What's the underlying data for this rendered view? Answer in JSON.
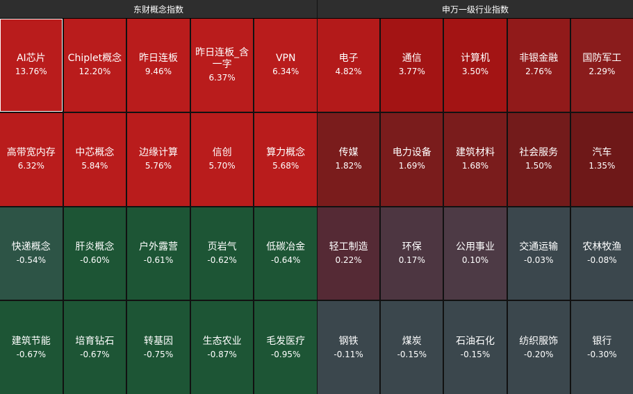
{
  "left_panel": {
    "title": "东财概念指数",
    "tiles": [
      {
        "name": "AI芯片",
        "pct": "13.76%",
        "color": "#b91c1c",
        "selected": true
      },
      {
        "name": "Chiplet概念",
        "pct": "12.20%",
        "color": "#b91c1c"
      },
      {
        "name": "昨日连板",
        "pct": "9.46%",
        "color": "#b91c1c"
      },
      {
        "name": "昨日连板_含一字",
        "pct": "6.37%",
        "color": "#b91c1c"
      },
      {
        "name": "VPN",
        "pct": "6.34%",
        "color": "#b91c1c"
      },
      {
        "name": "高带宽内存",
        "pct": "6.32%",
        "color": "#b91c1c"
      },
      {
        "name": "中芯概念",
        "pct": "5.84%",
        "color": "#b91c1c"
      },
      {
        "name": "边缘计算",
        "pct": "5.76%",
        "color": "#b91c1c"
      },
      {
        "name": "信创",
        "pct": "5.70%",
        "color": "#b91c1c"
      },
      {
        "name": "算力概念",
        "pct": "5.68%",
        "color": "#b91c1c"
      },
      {
        "name": "快递概念",
        "pct": "-0.54%",
        "color": "#2d5446"
      },
      {
        "name": "肝炎概念",
        "pct": "-0.60%",
        "color": "#1d5535"
      },
      {
        "name": "户外露营",
        "pct": "-0.61%",
        "color": "#1d5535"
      },
      {
        "name": "页岩气",
        "pct": "-0.62%",
        "color": "#1d5535"
      },
      {
        "name": "低碳冶金",
        "pct": "-0.64%",
        "color": "#1d5535"
      },
      {
        "name": "建筑节能",
        "pct": "-0.67%",
        "color": "#1d5535"
      },
      {
        "name": "培育钻石",
        "pct": "-0.67%",
        "color": "#1d5535"
      },
      {
        "name": "转基因",
        "pct": "-0.75%",
        "color": "#1d5535"
      },
      {
        "name": "生态农业",
        "pct": "-0.87%",
        "color": "#1d5535"
      },
      {
        "name": "毛发医疗",
        "pct": "-0.95%",
        "color": "#1d5535"
      }
    ]
  },
  "right_panel": {
    "title": "申万一级行业指数",
    "tiles": [
      {
        "name": "电子",
        "pct": "4.82%",
        "color": "#b31a1a"
      },
      {
        "name": "通信",
        "pct": "3.77%",
        "color": "#a31414"
      },
      {
        "name": "计算机",
        "pct": "3.50%",
        "color": "#a31414"
      },
      {
        "name": "非银金融",
        "pct": "2.76%",
        "color": "#911a1a"
      },
      {
        "name": "国防军工",
        "pct": "2.29%",
        "color": "#8a1c1c"
      },
      {
        "name": "传媒",
        "pct": "1.82%",
        "color": "#7a1c1c"
      },
      {
        "name": "电力设备",
        "pct": "1.69%",
        "color": "#7a1c1c"
      },
      {
        "name": "建筑材料",
        "pct": "1.68%",
        "color": "#7a1c1c"
      },
      {
        "name": "社会服务",
        "pct": "1.50%",
        "color": "#731b1b"
      },
      {
        "name": "汽车",
        "pct": "1.35%",
        "color": "#6e1818"
      },
      {
        "name": "轻工制造",
        "pct": "0.22%",
        "color": "#552a35"
      },
      {
        "name": "环保",
        "pct": "0.17%",
        "color": "#4d3641"
      },
      {
        "name": "公用事业",
        "pct": "0.10%",
        "color": "#4d3a45"
      },
      {
        "name": "交通运输",
        "pct": "-0.03%",
        "color": "#3b474d"
      },
      {
        "name": "农林牧渔",
        "pct": "-0.08%",
        "color": "#3b474d"
      },
      {
        "name": "钢铁",
        "pct": "-0.11%",
        "color": "#3b474d"
      },
      {
        "name": "煤炭",
        "pct": "-0.15%",
        "color": "#3b474d"
      },
      {
        "name": "石油石化",
        "pct": "-0.15%",
        "color": "#3b474d"
      },
      {
        "name": "纺织服饰",
        "pct": "-0.20%",
        "color": "#3b474d"
      },
      {
        "name": "银行",
        "pct": "-0.30%",
        "color": "#3b474d"
      }
    ]
  }
}
